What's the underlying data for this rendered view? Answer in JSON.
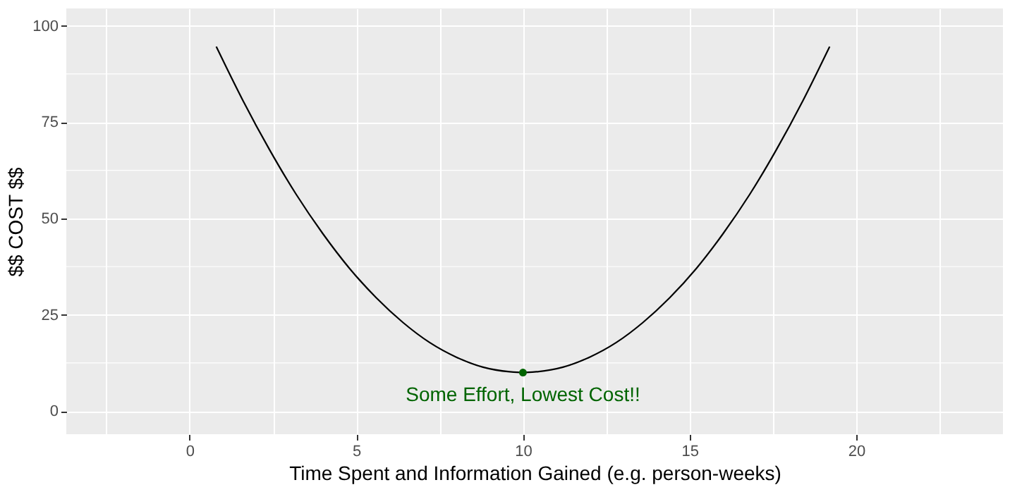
{
  "chart_data": {
    "type": "line",
    "xlabel": "Time Spent and Information Gained (e.g. person-weeks)",
    "ylabel": "$$ COST $$",
    "xlim": [
      -3.7,
      24.4
    ],
    "ylim": [
      -6,
      104.5
    ],
    "xticks": [
      {
        "value": -2.5,
        "label": null
      },
      0,
      {
        "value": 2.5,
        "label": null
      },
      5,
      {
        "value": 7.5,
        "label": null
      },
      10,
      {
        "value": 12.5,
        "label": null
      },
      15,
      {
        "value": 17.5,
        "label": null
      },
      20,
      {
        "value": 22.5,
        "label": null
      }
    ],
    "yticks": [
      0,
      {
        "value": 12.5,
        "label": null
      },
      25,
      {
        "value": 37.5,
        "label": null
      },
      50,
      {
        "value": 62.5,
        "label": null
      },
      75,
      {
        "value": 87.5,
        "label": null
      },
      100
    ],
    "grid": true,
    "series": [
      {
        "color": "#000000",
        "x": [
          0.8,
          1.6,
          2.4,
          3.2,
          4.0,
          4.8,
          5.6,
          6.4,
          7.2,
          8.0,
          8.8,
          9.6,
          10.0,
          10.4,
          11.2,
          12.0,
          12.8,
          13.6,
          14.4,
          15.2,
          16.0,
          16.8,
          17.6,
          18.4,
          19.2
        ],
        "values": [
          94.6,
          80.6,
          67.8,
          56.2,
          46.0,
          37.0,
          29.4,
          23.0,
          17.8,
          14.0,
          11.4,
          10.2,
          10.0,
          10.2,
          11.4,
          14.0,
          17.8,
          23.0,
          29.4,
          37.0,
          46.0,
          56.2,
          67.8,
          80.6,
          94.6
        ]
      },
      {
        "type": "scatter",
        "color": "#006400",
        "x": [
          10
        ],
        "values": [
          10
        ]
      }
    ],
    "annotations": [
      "Some Effort, Lowest Cost!!"
    ]
  }
}
